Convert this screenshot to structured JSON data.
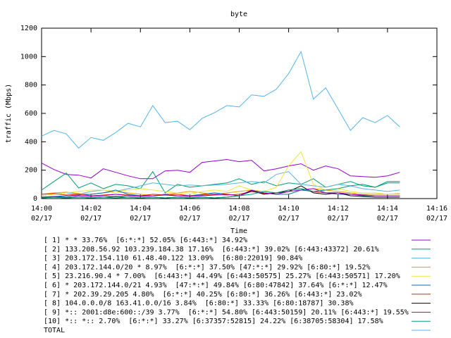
{
  "chart_data": {
    "type": "line",
    "title": "byte",
    "x_label": "Time",
    "y_label": "traffic (Mbps)",
    "x": [
      "14:00:00",
      "14:00:30",
      "14:01:00",
      "14:01:30",
      "14:02:00",
      "14:02:30",
      "14:03:00",
      "14:03:30",
      "14:04:00",
      "14:04:30",
      "14:05:00",
      "14:05:30",
      "14:06:00",
      "14:06:30",
      "14:07:00",
      "14:07:30",
      "14:08:00",
      "14:08:30",
      "14:09:00",
      "14:09:30",
      "14:10:00",
      "14:10:30",
      "14:11:00",
      "14:11:30",
      "14:12:00",
      "14:12:30",
      "14:13:00",
      "14:13:30",
      "14:14:00",
      "14:14:30"
    ],
    "xlim": [
      "14:00",
      "14:16"
    ],
    "xticks": [
      {
        "value": "14:00",
        "label": [
          "14:00",
          "02/17"
        ]
      },
      {
        "value": "14:02",
        "label": [
          "14:02",
          "02/17"
        ]
      },
      {
        "value": "14:04",
        "label": [
          "14:04",
          "02/17"
        ]
      },
      {
        "value": "14:06",
        "label": [
          "14:06",
          "02/17"
        ]
      },
      {
        "value": "14:08",
        "label": [
          "14:08",
          "02/17"
        ]
      },
      {
        "value": "14:10",
        "label": [
          "14:10",
          "02/17"
        ]
      },
      {
        "value": "14:12",
        "label": [
          "14:12",
          "02/17"
        ]
      },
      {
        "value": "14:14",
        "label": [
          "14:14",
          "02/17"
        ]
      },
      {
        "value": "14:16",
        "label": [
          "14:16",
          "02/17"
        ]
      }
    ],
    "ylim": [
      0,
      1200
    ],
    "yticks": [
      0,
      200,
      400,
      600,
      800,
      1000,
      1200
    ],
    "grid": false,
    "series": [
      {
        "name": "[ 1] * * 33.76%  [6:*:*] 52.05% [6:443:*] 34.92%",
        "color": "#9400d3",
        "values": [
          250,
          205,
          170,
          165,
          145,
          210,
          185,
          160,
          140,
          140,
          195,
          200,
          185,
          255,
          265,
          275,
          260,
          270,
          195,
          210,
          230,
          245,
          200,
          230,
          210,
          160,
          155,
          150,
          160,
          185
        ]
      },
      {
        "name": "[ 2] 133.208.56.92 103.239.184.38 17.16%  [6:443:*] 39.02% [6:443:43372] 20.61%",
        "color": "#009e73",
        "values": [
          60,
          120,
          180,
          75,
          110,
          70,
          100,
          90,
          70,
          190,
          40,
          100,
          80,
          90,
          100,
          110,
          140,
          100,
          120,
          90,
          110,
          100,
          140,
          80,
          100,
          120,
          90,
          80,
          120,
          120
        ]
      },
      {
        "name": "[ 3] 203.172.154.110 61.48.40.122 13.09%  [6:80:22019] 90.84%",
        "color": "#56b4e9",
        "values": [
          20,
          30,
          40,
          30,
          50,
          60,
          50,
          70,
          90,
          110,
          100,
          90,
          95,
          90,
          95,
          100,
          110,
          120,
          110,
          170,
          190,
          100,
          90,
          80,
          100,
          90,
          70,
          60,
          50,
          60
        ]
      },
      {
        "name": "[ 4] 203.172.144.0/20 * 8.97%  [6:*:*] 37.50% [47:*:*] 29.92% [6:80:*] 19.52%",
        "color": "#e69f00",
        "values": [
          30,
          40,
          45,
          35,
          30,
          40,
          50,
          40,
          30,
          20,
          30,
          40,
          50,
          40,
          30,
          40,
          50,
          60,
          50,
          40,
          50,
          60,
          70,
          60,
          50,
          40,
          30,
          30,
          30,
          35
        ]
      },
      {
        "name": "[ 5] 23.216.90.4 * 7.00%  [6:443:*] 44.49% [6:443:50575] 25.27% [6:443:50571] 17.20%",
        "color": "#f0e442",
        "values": [
          20,
          30,
          40,
          50,
          60,
          60,
          50,
          60,
          70,
          60,
          50,
          40,
          30,
          50,
          60,
          50,
          90,
          60,
          50,
          80,
          230,
          330,
          100,
          60,
          70,
          50,
          40,
          40,
          30,
          30
        ]
      },
      {
        "name": "[ 6] * 203.172.144.0/21 4.93%  [47:*:*] 49.84% [6:80:47842] 37.64% [6:*:*] 12.47%",
        "color": "#0072b2",
        "values": [
          10,
          15,
          20,
          25,
          30,
          40,
          60,
          30,
          20,
          20,
          30,
          20,
          20,
          30,
          40,
          30,
          20,
          50,
          40,
          30,
          30,
          60,
          50,
          40,
          30,
          30,
          20,
          20,
          20,
          20
        ]
      },
      {
        "name": "[ 7] * 202.39.29.205 4.80%  [6:*:*] 40.25% [6:80:*] 36.26% [6:443:*] 23.02%",
        "color": "#e51e10",
        "values": [
          30,
          35,
          25,
          30,
          20,
          25,
          30,
          25,
          20,
          30,
          25,
          30,
          20,
          25,
          30,
          25,
          30,
          50,
          35,
          40,
          60,
          70,
          50,
          40,
          40,
          30,
          25,
          20,
          20,
          20
        ]
      },
      {
        "name": "[ 8] 104.0.0.0/8 163.41.0.0/16 3.84%  [6:80:*] 33.33% [6:80:18787] 30.38%",
        "color": "#000000",
        "values": [
          5,
          10,
          5,
          10,
          5,
          10,
          15,
          10,
          5,
          10,
          5,
          10,
          5,
          10,
          5,
          10,
          20,
          55,
          30,
          40,
          50,
          90,
          40,
          30,
          40,
          20,
          15,
          10,
          10,
          10
        ]
      },
      {
        "name": "[ 9] *:: 2001:d8e:600::/39 3.77%  [6:*:*] 54.80% [6:443:50159] 20.11% [6:443:*] 19.55%",
        "color": "#9400d3",
        "values": [
          10,
          15,
          10,
          20,
          15,
          20,
          30,
          20,
          15,
          20,
          25,
          20,
          15,
          20,
          25,
          30,
          20,
          60,
          40,
          30,
          50,
          60,
          70,
          40,
          40,
          30,
          25,
          20,
          20,
          20
        ]
      },
      {
        "name": "[10] *:: *:: 2.70%  [6:*:*] 33.27% [6:37357:52815] 24.22% [6:38705:58304] 17.58%",
        "color": "#009e73",
        "values": [
          5,
          10,
          5,
          10,
          5,
          10,
          5,
          10,
          5,
          10,
          5,
          10,
          5,
          10,
          5,
          10,
          20,
          30,
          50,
          40,
          60,
          70,
          50,
          60,
          70,
          90,
          100,
          80,
          110,
          110
        ]
      },
      {
        "name": "TOTAL",
        "color": "#56b4e9",
        "values": [
          440,
          480,
          455,
          355,
          430,
          410,
          465,
          530,
          505,
          655,
          535,
          545,
          485,
          565,
          605,
          655,
          645,
          730,
          720,
          770,
          880,
          1035,
          700,
          780,
          630,
          480,
          570,
          535,
          585,
          505
        ]
      }
    ]
  }
}
